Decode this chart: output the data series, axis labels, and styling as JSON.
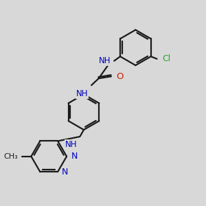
{
  "bg": "#d8d8d8",
  "bc": "#1a1a1a",
  "nc": "#0000bb",
  "oc": "#cc2200",
  "clc": "#22aa22",
  "lw": 1.6,
  "dpi": 100,
  "xlim": [
    0,
    10
  ],
  "ylim": [
    0,
    10
  ]
}
